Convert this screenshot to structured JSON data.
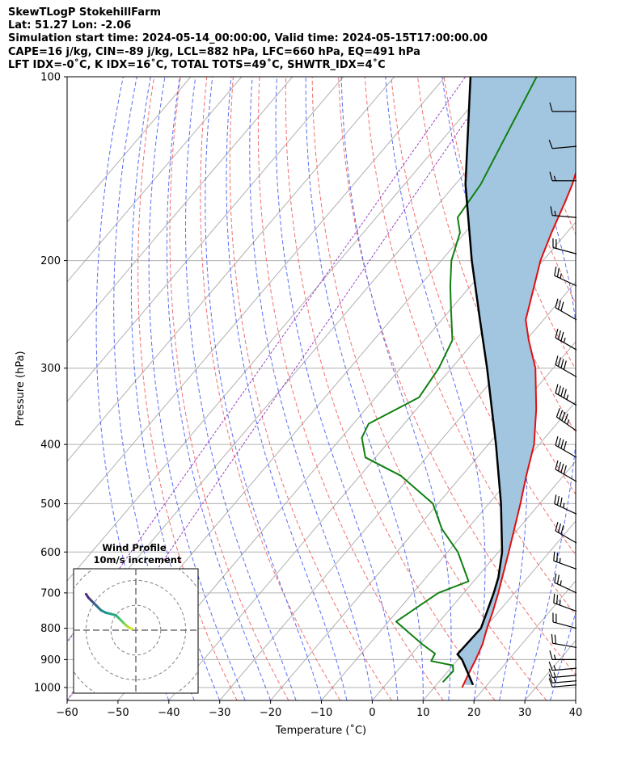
{
  "header": {
    "line1": "SkewTLogP StokehillFarm",
    "line2": "Lat: 51.27   Lon: -2.06",
    "line3": "Simulation start time: 2024-05-14_00:00:00, Valid time: 2024-05-15T17:00:00.00",
    "line4": "CAPE=16 j/kg, CIN=-89 j/kg, LCL=882 hPa, LFC=660 hPa, EQ=491 hPa",
    "line5": "LFT IDX=-0˚C, K IDX=16˚C, TOTAL TOTS=49˚C, SHWTR_IDX=4˚C"
  },
  "chart_data": {
    "type": "skew-t",
    "xlabel": "Temperature (˚C)",
    "ylabel": "Pressure (hPa)",
    "xlim": [
      -60,
      40
    ],
    "ylim": [
      1050,
      100
    ],
    "log_y": true,
    "grid": true,
    "x_ticks": [
      "−60",
      "−50",
      "−40",
      "−30",
      "−20",
      "−10",
      "0",
      "10",
      "20",
      "30",
      "40"
    ],
    "y_ticks": [
      1000,
      900,
      800,
      700,
      600,
      500,
      400,
      300,
      200,
      100
    ],
    "temperature": {
      "color": "#e01010",
      "points": [
        [
          1000,
          15.5
        ],
        [
          950,
          14.5
        ],
        [
          900,
          13.5
        ],
        [
          850,
          12.3
        ],
        [
          800,
          10.5
        ],
        [
          750,
          8.8
        ],
        [
          700,
          6.8
        ],
        [
          600,
          2.0
        ],
        [
          500,
          -3.8
        ],
        [
          450,
          -7.3
        ],
        [
          400,
          -11.0
        ],
        [
          350,
          -16.5
        ],
        [
          300,
          -23.5
        ],
        [
          270,
          -29.5
        ],
        [
          250,
          -33.5
        ],
        [
          220,
          -37.5
        ],
        [
          200,
          -40.5
        ],
        [
          180,
          -43.0
        ],
        [
          160,
          -45.5
        ],
        [
          150,
          -47.0
        ],
        [
          130,
          -51.0
        ],
        [
          120,
          -52.5
        ],
        [
          110,
          -54.0
        ],
        [
          100,
          -56.0
        ]
      ]
    },
    "dewpoint": {
      "color": "#108010",
      "points": [
        [
          980,
          10.8
        ],
        [
          940,
          11.0
        ],
        [
          920,
          10.0
        ],
        [
          905,
          5.0
        ],
        [
          880,
          4.5
        ],
        [
          850,
          0.5
        ],
        [
          780,
          -8.5
        ],
        [
          700,
          -5.0
        ],
        [
          670,
          -1.0
        ],
        [
          600,
          -8.0
        ],
        [
          550,
          -15.0
        ],
        [
          500,
          -21.0
        ],
        [
          450,
          -32.0
        ],
        [
          420,
          -42.0
        ],
        [
          390,
          -46.0
        ],
        [
          370,
          -47.0
        ],
        [
          335,
          -41.5
        ],
        [
          300,
          -42.5
        ],
        [
          270,
          -44.5
        ],
        [
          240,
          -50.0
        ],
        [
          220,
          -54.0
        ],
        [
          200,
          -58.0
        ],
        [
          180,
          -61.0
        ],
        [
          170,
          -64.0
        ],
        [
          150,
          -65.0
        ],
        [
          100,
          -72.0
        ]
      ]
    },
    "parcel": {
      "color": "#000000",
      "points": [
        [
          990,
          17.2
        ],
        [
          900,
          10.8
        ],
        [
          882,
          9.0
        ],
        [
          800,
          9.3
        ],
        [
          700,
          5.9
        ],
        [
          660,
          4.2
        ],
        [
          600,
          0.7
        ],
        [
          500,
          -7.6
        ],
        [
          491,
          -8.5
        ],
        [
          400,
          -18.5
        ],
        [
          300,
          -33.0
        ],
        [
          250,
          -42.5
        ],
        [
          200,
          -54.0
        ],
        [
          150,
          -68.0
        ],
        [
          100,
          -85.0
        ]
      ]
    },
    "cape_fill_color": "#a3c6e0",
    "winds": [
      {
        "p": 990,
        "speed": 10,
        "dir": 265
      },
      {
        "p": 975,
        "speed": 15,
        "dir": 265
      },
      {
        "p": 955,
        "speed": 15,
        "dir": 265
      },
      {
        "p": 930,
        "speed": 15,
        "dir": 265
      },
      {
        "p": 900,
        "speed": 15,
        "dir": 270
      },
      {
        "p": 860,
        "speed": 20,
        "dir": 280
      },
      {
        "p": 800,
        "speed": 20,
        "dir": 285
      },
      {
        "p": 750,
        "speed": 25,
        "dir": 290
      },
      {
        "p": 700,
        "speed": 25,
        "dir": 295
      },
      {
        "p": 640,
        "speed": 25,
        "dir": 290
      },
      {
        "p": 580,
        "speed": 30,
        "dir": 300
      },
      {
        "p": 520,
        "speed": 35,
        "dir": 295
      },
      {
        "p": 460,
        "speed": 40,
        "dir": 300
      },
      {
        "p": 420,
        "speed": 40,
        "dir": 300
      },
      {
        "p": 380,
        "speed": 45,
        "dir": 305
      },
      {
        "p": 345,
        "speed": 45,
        "dir": 300
      },
      {
        "p": 310,
        "speed": 40,
        "dir": 300
      },
      {
        "p": 280,
        "speed": 35,
        "dir": 300
      },
      {
        "p": 250,
        "speed": 30,
        "dir": 300
      },
      {
        "p": 220,
        "speed": 25,
        "dir": 295
      },
      {
        "p": 195,
        "speed": 20,
        "dir": 285
      },
      {
        "p": 170,
        "speed": 15,
        "dir": 275
      },
      {
        "p": 148,
        "speed": 15,
        "dir": 270
      },
      {
        "p": 130,
        "speed": 10,
        "dir": 265
      },
      {
        "p": 114,
        "speed": 10,
        "dir": 270
      }
    ],
    "hodograph": {
      "title": "Wind Profile",
      "subtitle": "10m/s increment",
      "rings": [
        10,
        20,
        30
      ],
      "range": [
        -25,
        25
      ],
      "points": [
        [
          -1.5,
          0.5
        ],
        [
          -3,
          1.2
        ],
        [
          -4,
          2
        ],
        [
          -5,
          3
        ],
        [
          -6,
          4
        ],
        [
          -7,
          5
        ],
        [
          -8,
          6
        ],
        [
          -10,
          6.5
        ],
        [
          -12,
          7
        ],
        [
          -14,
          8
        ],
        [
          -15,
          9
        ],
        [
          -16,
          10
        ],
        [
          -17,
          11
        ],
        [
          -18,
          12
        ],
        [
          -19,
          13
        ],
        [
          -20,
          14.5
        ]
      ]
    }
  }
}
